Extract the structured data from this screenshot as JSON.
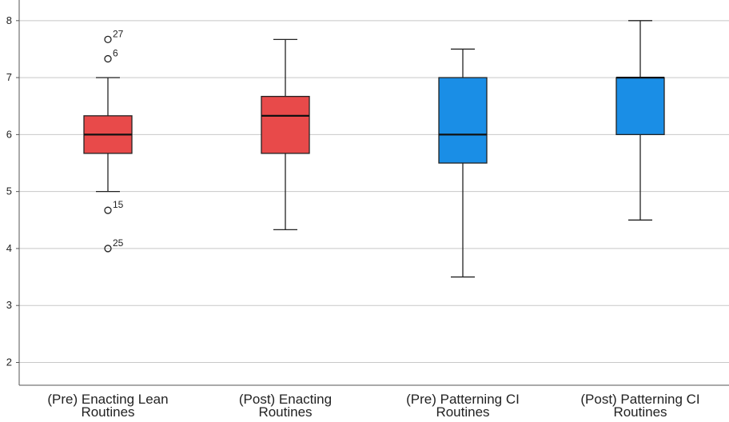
{
  "chart_data": {
    "type": "boxplot",
    "title": "",
    "xlabel": "",
    "ylabel": "",
    "ylim": [
      1.6,
      8.25
    ],
    "yticks": [
      2,
      3,
      4,
      5,
      6,
      7,
      8
    ],
    "grid": "horizontal",
    "categories": [
      [
        "(Pre) Enacting Lean",
        "Routines"
      ],
      [
        "(Post) Enacting",
        "Routines"
      ],
      [
        "(Pre) Patterning CI",
        "Routines"
      ],
      [
        "(Post) Patterning CI",
        "Routines"
      ]
    ],
    "boxes": [
      {
        "color": "#e84a4a",
        "whisker_low": 5.0,
        "q1": 5.67,
        "median": 6.0,
        "q3": 6.33,
        "whisker_high": 7.0,
        "outliers": [
          {
            "value": 7.67,
            "label": "27"
          },
          {
            "value": 7.33,
            "label": "6"
          },
          {
            "value": 4.67,
            "label": "15"
          },
          {
            "value": 4.0,
            "label": "25"
          }
        ]
      },
      {
        "color": "#e84a4a",
        "whisker_low": 4.33,
        "q1": 5.67,
        "median": 6.33,
        "q3": 6.67,
        "whisker_high": 7.67,
        "outliers": []
      },
      {
        "color": "#1a8ee6",
        "whisker_low": 3.5,
        "q1": 5.5,
        "median": 6.0,
        "q3": 7.0,
        "whisker_high": 7.5,
        "outliers": []
      },
      {
        "color": "#1a8ee6",
        "whisker_low": 4.5,
        "q1": 6.0,
        "median": 7.0,
        "q3": 7.0,
        "whisker_high": 8.0,
        "outliers": []
      }
    ]
  }
}
